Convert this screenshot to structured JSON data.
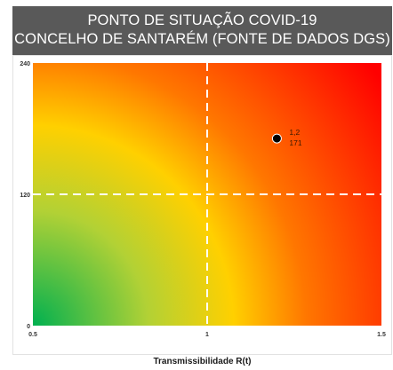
{
  "header": {
    "title_line1": "PONTO DE SITUAÇÃO COVID-19",
    "title_line2": "CONCELHO DE SANTARÉM (FONTE DE DADOS DGS)",
    "background_color": "#595959",
    "text_color": "#ffffff"
  },
  "chart_data": {
    "type": "scatter",
    "title": "PONTO DE SITUAÇÃO COVID-19 CONCELHO DE SANTARÉM (FONTE DE DADOS DGS)",
    "xlabel": "Transmissibilidade R(t)",
    "ylabel": "",
    "xlim": [
      0.5,
      1.5
    ],
    "ylim": [
      0,
      240
    ],
    "x_ticks": [
      "0.5",
      "1",
      "1.5"
    ],
    "y_ticks": [
      "0",
      "120",
      "240"
    ],
    "x_tick_values": [
      0.5,
      1,
      1.5
    ],
    "y_tick_values": [
      0,
      120,
      240
    ],
    "threshold_lines": {
      "x": 1,
      "y": 120,
      "style": "dashed",
      "color": "#ffffff"
    },
    "background": "risk gradient: green (low R(t), low incidence) through yellow/orange to red (high R(t), high incidence)",
    "gradient_colors": [
      "#ff0000",
      "#ff7700",
      "#ffd000",
      "#b2d135",
      "#00b050"
    ],
    "points": [
      {
        "x": 1.2,
        "y": 171,
        "label_x": "1,2",
        "label_y": "171",
        "color": "#000000"
      }
    ],
    "grid": false,
    "legend": "none"
  }
}
